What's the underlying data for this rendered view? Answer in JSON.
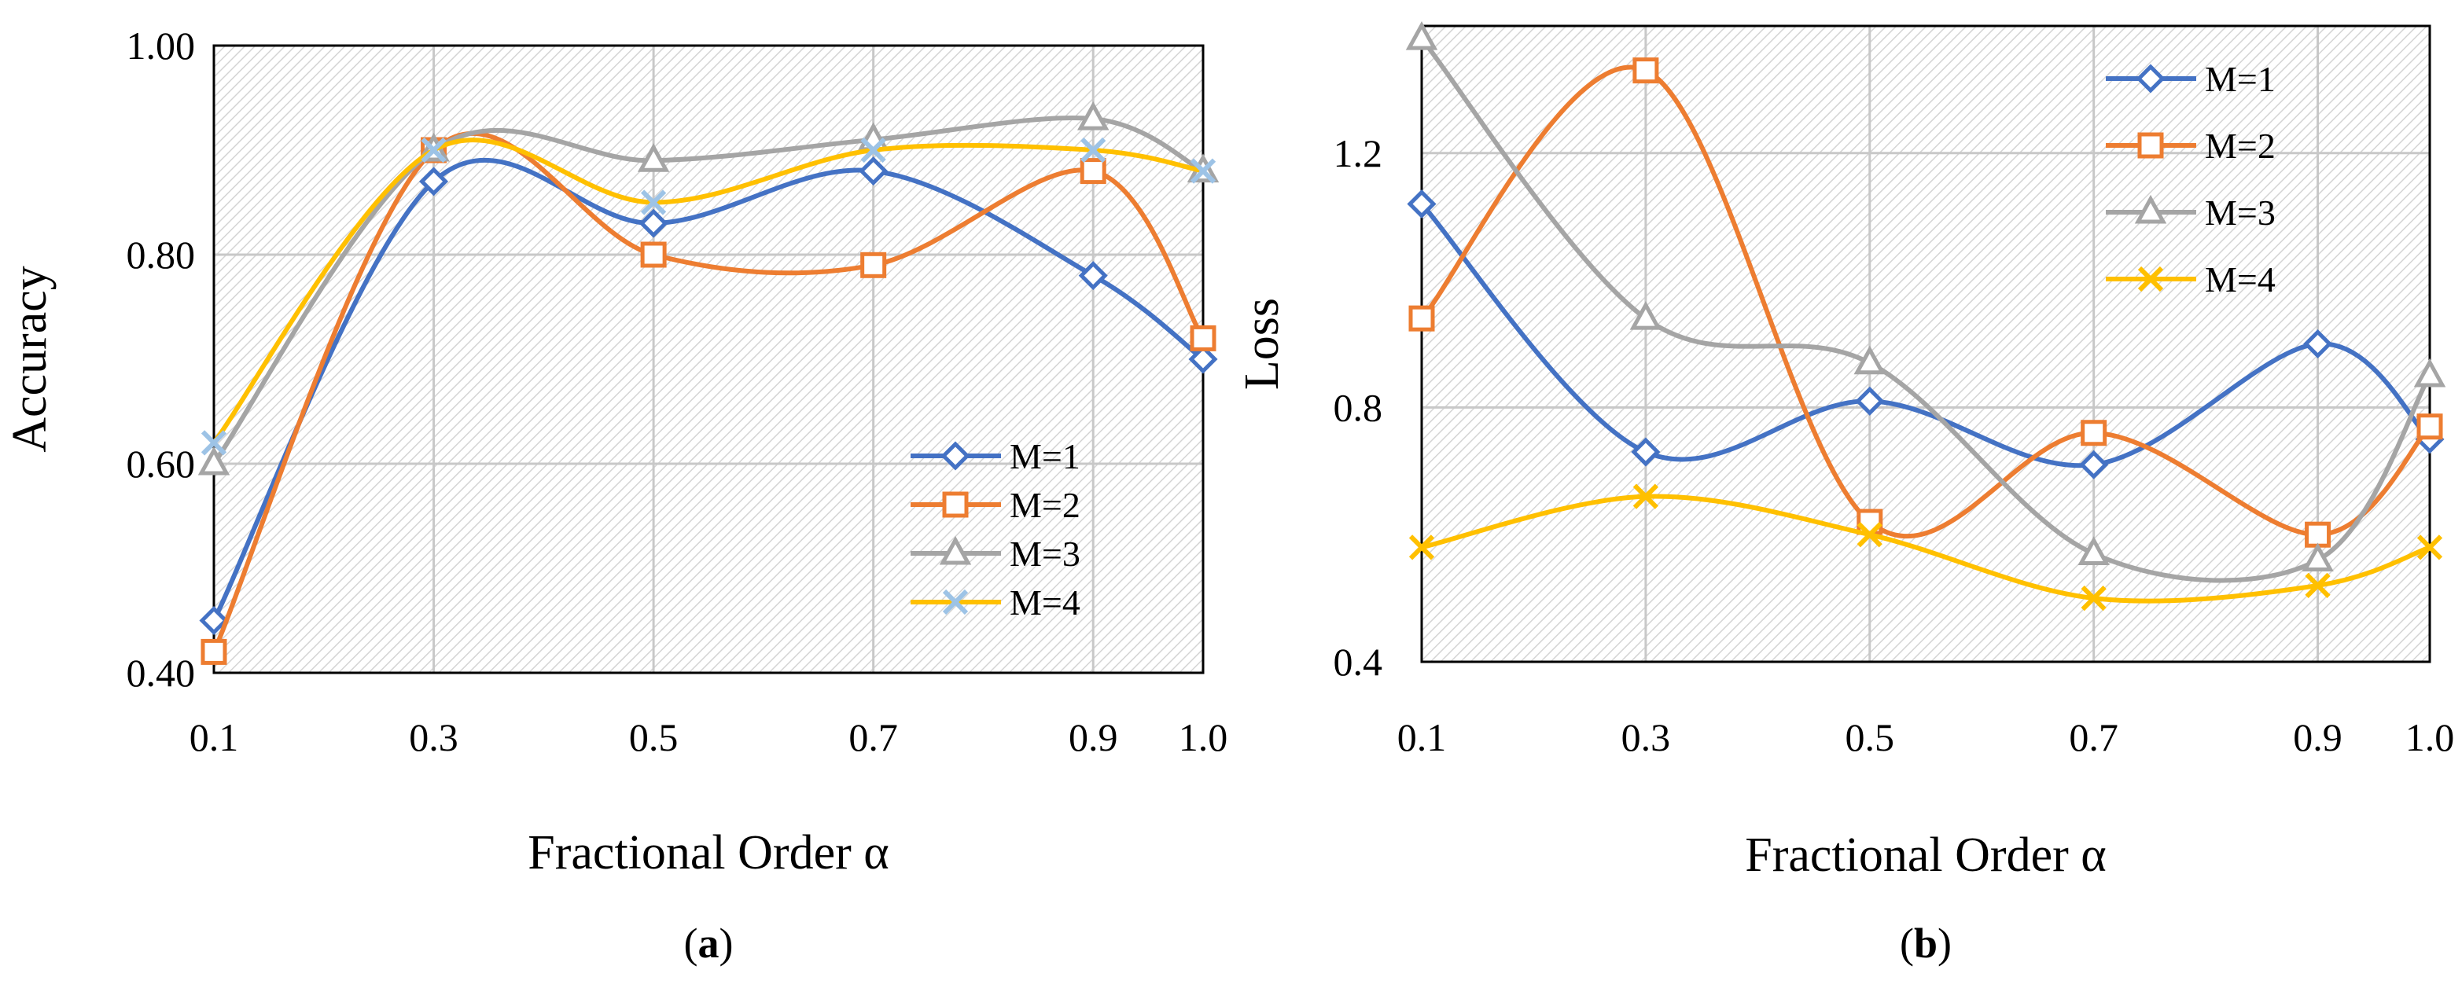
{
  "chart_data": [
    {
      "type": "line",
      "smooth": true,
      "panel_label": "a",
      "title": "",
      "xlabel": "Fractional Order α",
      "ylabel": "Accuracy",
      "x": [
        0.1,
        0.3,
        0.5,
        0.7,
        0.9,
        1.0
      ],
      "x_tick_labels": [
        "0.1",
        "0.3",
        "0.5",
        "0.7",
        "0.9",
        "1.0"
      ],
      "ylim": [
        0.4,
        1.0
      ],
      "y_ticks": [
        0.4,
        0.6,
        0.8,
        1.0
      ],
      "y_tick_labels": [
        "0.40",
        "0.60",
        "0.80",
        "1.00"
      ],
      "grid": true,
      "background": "hatched",
      "legend_position": "bottom-right",
      "series": [
        {
          "name": "M=1",
          "marker": "diamond",
          "color": "#4472C4",
          "values": [
            0.45,
            0.87,
            0.83,
            0.88,
            0.78,
            0.7
          ]
        },
        {
          "name": "M=2",
          "marker": "square",
          "color": "#ED7D31",
          "values": [
            0.42,
            0.9,
            0.8,
            0.79,
            0.88,
            0.72
          ]
        },
        {
          "name": "M=3",
          "marker": "triangle",
          "color": "#A5A5A5",
          "values": [
            0.6,
            0.9,
            0.89,
            0.91,
            0.93,
            0.88
          ]
        },
        {
          "name": "M=4",
          "marker": "x",
          "color": "#FFC000",
          "marker_color": "#9DC3E6",
          "values": [
            0.62,
            0.9,
            0.85,
            0.9,
            0.9,
            0.88
          ]
        }
      ]
    },
    {
      "type": "line",
      "smooth": true,
      "panel_label": "b",
      "title": "",
      "xlabel": "Fractional Order α",
      "ylabel": "Loss",
      "x": [
        0.1,
        0.3,
        0.5,
        0.7,
        0.9,
        1.0
      ],
      "x_tick_labels": [
        "0.1",
        "0.3",
        "0.5",
        "0.7",
        "0.9",
        "1.0"
      ],
      "ylim": [
        0.4,
        1.4
      ],
      "y_ticks": [
        0.4,
        0.8,
        1.2
      ],
      "y_tick_labels": [
        "0.4",
        "0.8",
        "1.2"
      ],
      "grid": true,
      "background": "hatched",
      "legend_position": "top-right",
      "series": [
        {
          "name": "M=1",
          "marker": "diamond",
          "color": "#4472C4",
          "values": [
            1.12,
            0.73,
            0.81,
            0.71,
            0.9,
            0.75
          ]
        },
        {
          "name": "M=2",
          "marker": "square",
          "color": "#ED7D31",
          "values": [
            0.94,
            1.33,
            0.62,
            0.76,
            0.6,
            0.77
          ]
        },
        {
          "name": "M=3",
          "marker": "triangle",
          "color": "#A5A5A5",
          "values": [
            1.38,
            0.94,
            0.87,
            0.57,
            0.56,
            0.85
          ]
        },
        {
          "name": "M=4",
          "marker": "x",
          "color": "#FFC000",
          "values": [
            0.58,
            0.66,
            0.6,
            0.5,
            0.52,
            0.58
          ]
        }
      ]
    }
  ]
}
